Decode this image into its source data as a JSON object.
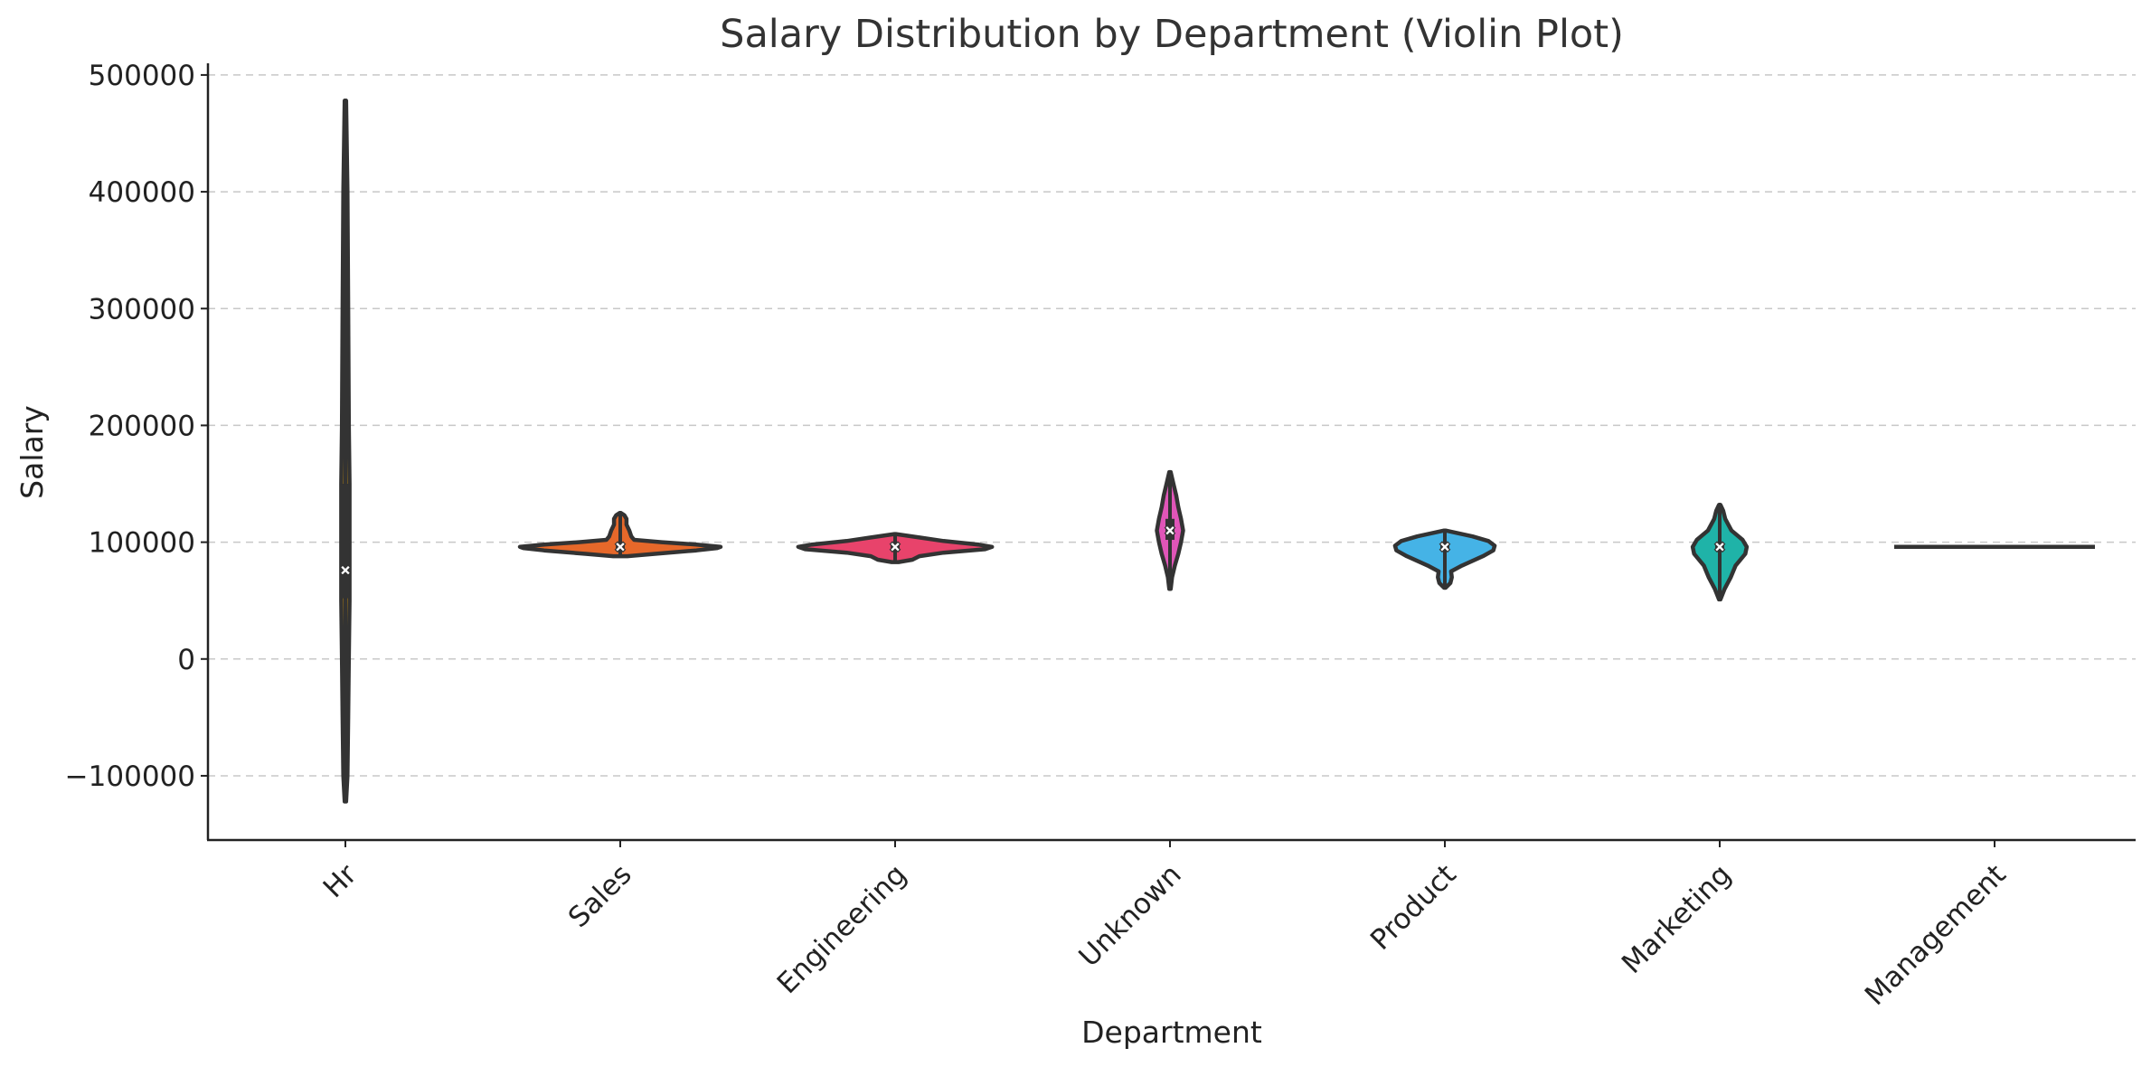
{
  "chart_data": {
    "type": "violin",
    "title": "Salary Distribution by Department (Violin Plot)",
    "xlabel": "Department",
    "ylabel": "Salary",
    "ylim": [
      -155000,
      510000
    ],
    "yticks": [
      500000,
      400000,
      300000,
      200000,
      100000,
      0,
      -100000
    ],
    "ytick_labels": [
      "500000",
      "400000",
      "300000",
      "200000",
      "100000",
      "0",
      "−100000"
    ],
    "grid": "horizontal-dashed",
    "categories": [
      "Hr",
      "Sales",
      "Engineering",
      "Unknown",
      "Product",
      "Marketing",
      "Management"
    ],
    "colors": [
      "#e69f00",
      "#e6682a",
      "#e8436b",
      "#e055b8",
      "#45b3e6",
      "#1fb3a8",
      "#7a5cc4"
    ],
    "series": [
      {
        "category": "Hr",
        "min": -122000,
        "max": 478000,
        "q1": 52000,
        "q3": 150000,
        "median": 76000,
        "density": [
          [
            -122000,
            1
          ],
          [
            -100000,
            3
          ],
          [
            -50000,
            4
          ],
          [
            0,
            5
          ],
          [
            50000,
            6
          ],
          [
            76000,
            6
          ],
          [
            100000,
            6
          ],
          [
            150000,
            6
          ],
          [
            200000,
            5
          ],
          [
            300000,
            4
          ],
          [
            400000,
            3
          ],
          [
            478000,
            1
          ]
        ]
      },
      {
        "category": "Sales",
        "min": 88000,
        "max": 125000,
        "q1": 94500,
        "q3": 97500,
        "median": 96000,
        "density": [
          [
            88000,
            10
          ],
          [
            90000,
            50
          ],
          [
            93000,
            110
          ],
          [
            95000,
            140
          ],
          [
            96000,
            145
          ],
          [
            98000,
            110
          ],
          [
            100000,
            60
          ],
          [
            102000,
            20
          ],
          [
            105000,
            16
          ],
          [
            110000,
            13
          ],
          [
            115000,
            9
          ],
          [
            120000,
            9
          ],
          [
            123000,
            6
          ],
          [
            125000,
            0
          ]
        ]
      },
      {
        "category": "Engineering",
        "min": 83000,
        "max": 107000,
        "q1": 94500,
        "q3": 97500,
        "median": 96000,
        "density": [
          [
            83000,
            5
          ],
          [
            85000,
            25
          ],
          [
            88000,
            35
          ],
          [
            91000,
            70
          ],
          [
            94000,
            130
          ],
          [
            96000,
            140
          ],
          [
            98000,
            120
          ],
          [
            101000,
            70
          ],
          [
            104000,
            35
          ],
          [
            107000,
            0
          ]
        ]
      },
      {
        "category": "Unknown",
        "min": 60000,
        "max": 160000,
        "q1": 102000,
        "q3": 120000,
        "median": 110000,
        "density": [
          [
            60000,
            0
          ],
          [
            70000,
            3
          ],
          [
            80000,
            7
          ],
          [
            90000,
            12
          ],
          [
            100000,
            16
          ],
          [
            110000,
            19
          ],
          [
            120000,
            16
          ],
          [
            130000,
            12
          ],
          [
            140000,
            9
          ],
          [
            150000,
            5
          ],
          [
            160000,
            0
          ]
        ]
      },
      {
        "category": "Product",
        "min": 61000,
        "max": 110000,
        "q1": 94500,
        "q3": 97500,
        "median": 96000,
        "density": [
          [
            61000,
            0
          ],
          [
            65000,
            8
          ],
          [
            70000,
            10
          ],
          [
            75000,
            9
          ],
          [
            80000,
            25
          ],
          [
            88000,
            55
          ],
          [
            93000,
            70
          ],
          [
            97000,
            72
          ],
          [
            101000,
            63
          ],
          [
            105000,
            40
          ],
          [
            110000,
            0
          ]
        ]
      },
      {
        "category": "Marketing",
        "min": 51000,
        "max": 132000,
        "q1": 92500,
        "q3": 98500,
        "median": 96000,
        "density": [
          [
            51000,
            0
          ],
          [
            60000,
            7
          ],
          [
            70000,
            16
          ],
          [
            80000,
            23
          ],
          [
            90000,
            37
          ],
          [
            96000,
            39
          ],
          [
            102000,
            33
          ],
          [
            110000,
            17
          ],
          [
            120000,
            8
          ],
          [
            127000,
            5
          ],
          [
            132000,
            0
          ]
        ]
      },
      {
        "category": "Management",
        "min": 96000,
        "max": 96000,
        "q1": 96000,
        "q3": 96000,
        "median": 96000,
        "density": []
      }
    ]
  }
}
